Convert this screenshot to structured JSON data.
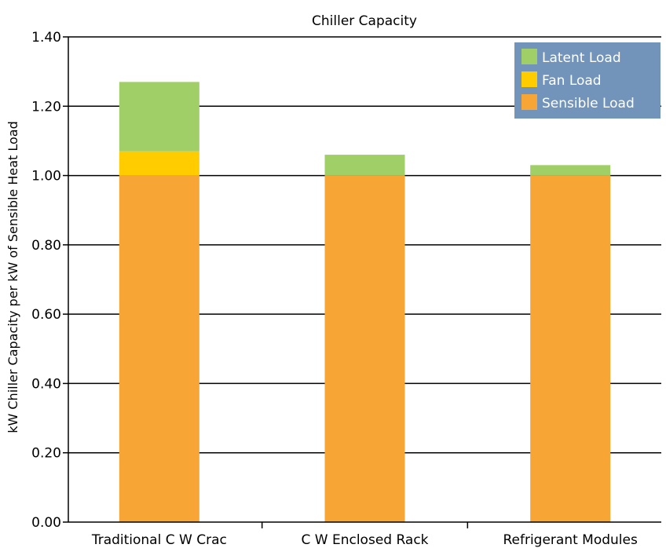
{
  "chart_data": {
    "type": "bar",
    "stacked": true,
    "title": "Chiller Capacity",
    "xlabel": "",
    "ylabel": "kW Chiller Capacity per kW of Sensible Heat Load",
    "ylim": [
      0,
      1.4
    ],
    "y_ticks": [
      "0.00",
      "0.20",
      "0.40",
      "0.60",
      "0.80",
      "1.00",
      "1.20",
      "1.40"
    ],
    "grid": true,
    "legend_position": "top-right",
    "categories": [
      "Traditional C W Crac",
      "C W Enclosed Rack",
      "Refrigerant Modules"
    ],
    "series": [
      {
        "name": "Sensible Load",
        "color": "#f7a535",
        "values": [
          1.0,
          1.0,
          1.0
        ]
      },
      {
        "name": "Fan Load",
        "color": "#ffcc00",
        "values": [
          0.07,
          0.0,
          0.0
        ]
      },
      {
        "name": "Latent Load",
        "color": "#a0ce67",
        "values": [
          0.2,
          0.06,
          0.03
        ]
      }
    ],
    "legend_order": [
      "Latent Load",
      "Fan Load",
      "Sensible Load"
    ],
    "legend_background": "#7294ba"
  }
}
